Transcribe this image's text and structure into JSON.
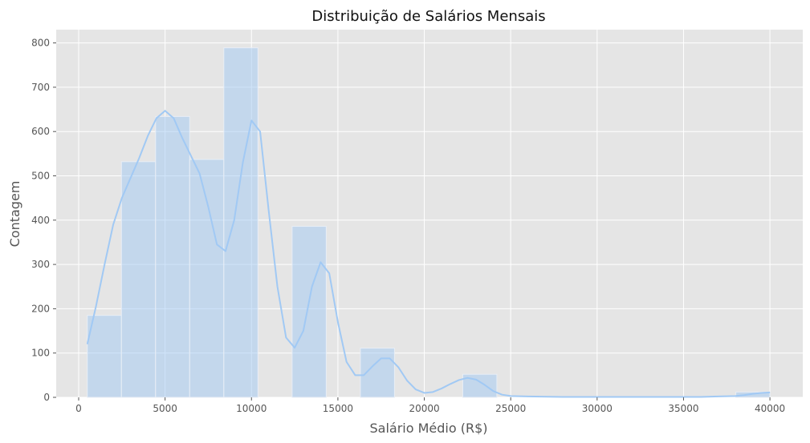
{
  "chart_data": {
    "type": "bar",
    "title": "Distribuição de Salários Mensais",
    "xlabel": "Salário Médio (R$)",
    "ylabel": "Contagem",
    "xlim": [
      -1300,
      41900
    ],
    "ylim": [
      0,
      830
    ],
    "x_ticks": [
      0,
      5000,
      10000,
      15000,
      20000,
      25000,
      30000,
      35000,
      40000
    ],
    "y_ticks": [
      0,
      100,
      200,
      300,
      400,
      500,
      600,
      700,
      800
    ],
    "grid": true,
    "bins": [
      {
        "x0": 500,
        "x1": 2475,
        "count": 185
      },
      {
        "x0": 2475,
        "x1": 4450,
        "count": 532
      },
      {
        "x0": 4450,
        "x1": 6425,
        "count": 634
      },
      {
        "x0": 6425,
        "x1": 8400,
        "count": 537
      },
      {
        "x0": 8400,
        "x1": 10375,
        "count": 789
      },
      {
        "x0": 10375,
        "x1": 12350,
        "count": 0
      },
      {
        "x0": 12350,
        "x1": 14325,
        "count": 386
      },
      {
        "x0": 14325,
        "x1": 16300,
        "count": 0
      },
      {
        "x0": 16300,
        "x1": 18275,
        "count": 111
      },
      {
        "x0": 18275,
        "x1": 20250,
        "count": 0
      },
      {
        "x0": 20250,
        "x1": 22225,
        "count": 0
      },
      {
        "x0": 22225,
        "x1": 24200,
        "count": 52
      },
      {
        "x0": 24200,
        "x1": 26175,
        "count": 0
      },
      {
        "x0": 26175,
        "x1": 28150,
        "count": 0
      },
      {
        "x0": 28150,
        "x1": 30125,
        "count": 0
      },
      {
        "x0": 30125,
        "x1": 32100,
        "count": 0
      },
      {
        "x0": 32100,
        "x1": 34075,
        "count": 0
      },
      {
        "x0": 34075,
        "x1": 36050,
        "count": 0
      },
      {
        "x0": 36050,
        "x1": 38025,
        "count": 0
      },
      {
        "x0": 38025,
        "x1": 40000,
        "count": 12
      }
    ],
    "kde": {
      "x": [
        500,
        1000,
        1500,
        2000,
        2500,
        3000,
        3500,
        4000,
        4500,
        5000,
        5500,
        6000,
        6500,
        7000,
        7500,
        8000,
        8500,
        9000,
        9500,
        10000,
        10500,
        11000,
        11500,
        12000,
        12500,
        13000,
        13500,
        14000,
        14500,
        15000,
        15500,
        16000,
        16500,
        17000,
        17500,
        18000,
        18500,
        19000,
        19500,
        20000,
        20500,
        21000,
        21500,
        22000,
        22500,
        23000,
        23500,
        24000,
        24500,
        25000,
        26000,
        28000,
        30000,
        32000,
        34000,
        36000,
        37000,
        38000,
        38500,
        39000,
        39500,
        40000
      ],
      "y": [
        120,
        205,
        300,
        390,
        450,
        495,
        540,
        590,
        630,
        647,
        630,
        585,
        545,
        505,
        430,
        345,
        330,
        400,
        530,
        625,
        600,
        420,
        250,
        135,
        112,
        150,
        250,
        305,
        280,
        170,
        80,
        50,
        50,
        70,
        88,
        88,
        68,
        38,
        18,
        10,
        12,
        20,
        30,
        39,
        44,
        40,
        28,
        14,
        6,
        3,
        2,
        1,
        1,
        1,
        1,
        1,
        2,
        3,
        5,
        8,
        10,
        11
      ]
    },
    "colors": {
      "plot_background": "#e5e5e5",
      "grid": "#ffffff",
      "bar_fill": "#a1c9f4",
      "bar_opacity": 0.5,
      "kde_line": "#a1c9f4",
      "tick_text": "#555555",
      "title_text": "#111111"
    }
  }
}
